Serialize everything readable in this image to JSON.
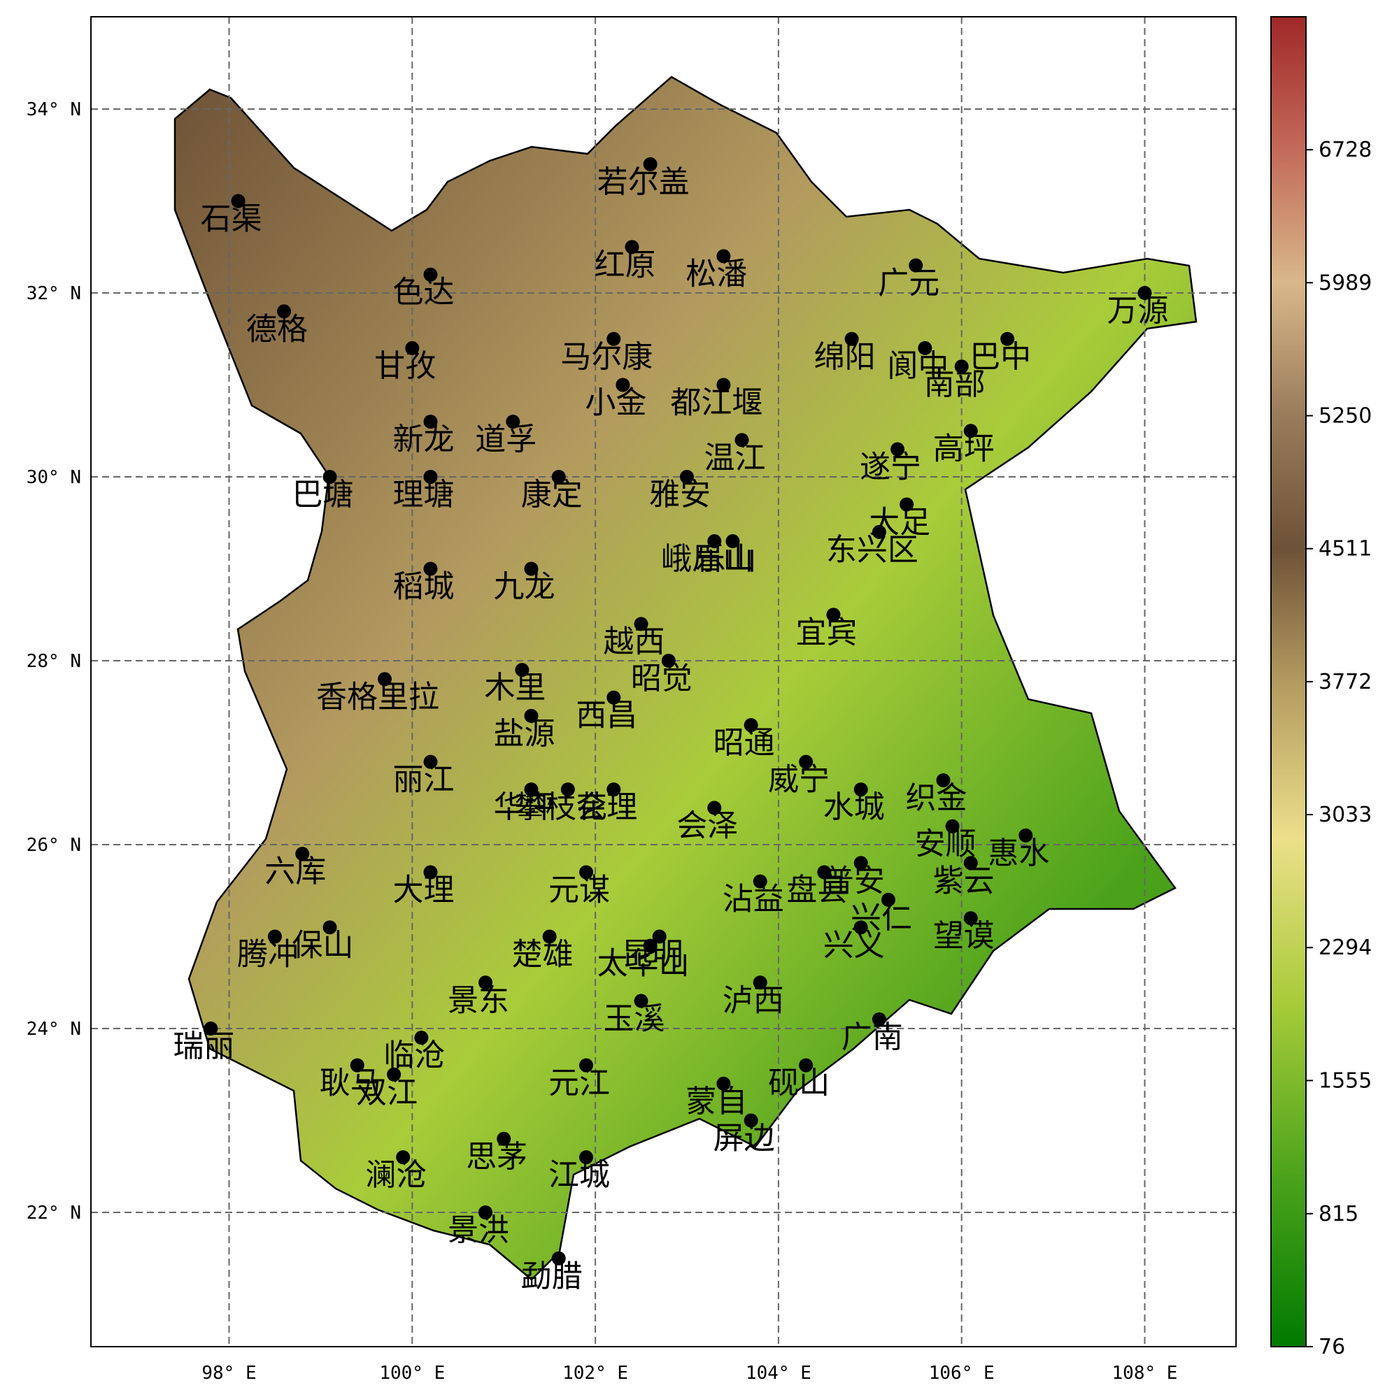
{
  "map": {
    "lon_ticks": [
      "98° E",
      "100° E",
      "102° E",
      "104° E",
      "106° E",
      "108° E"
    ],
    "lat_ticks": [
      "34° N",
      "32° N",
      "30° N",
      "28° N",
      "26° N",
      "24° N",
      "22° N"
    ],
    "lon_values": [
      98,
      100,
      102,
      104,
      106,
      108
    ],
    "lat_values": [
      34,
      32,
      30,
      28,
      26,
      24,
      22
    ],
    "lon_range": [
      96.5,
      109.0
    ],
    "lat_range": [
      20.5,
      35.0
    ],
    "gridlines": true,
    "stations": [
      {
        "name": "石渠",
        "lon": 98.1,
        "lat": 33.0
      },
      {
        "name": "色达",
        "lon": 100.2,
        "lat": 32.2
      },
      {
        "name": "若尔盖",
        "lon": 102.6,
        "lat": 33.4
      },
      {
        "name": "红原",
        "lon": 102.4,
        "lat": 32.5
      },
      {
        "name": "松潘",
        "lon": 103.4,
        "lat": 32.4
      },
      {
        "name": "德格",
        "lon": 98.6,
        "lat": 31.8
      },
      {
        "name": "甘孜",
        "lon": 100.0,
        "lat": 31.4
      },
      {
        "name": "马尔康",
        "lon": 102.2,
        "lat": 31.5
      },
      {
        "name": "广元",
        "lon": 105.5,
        "lat": 32.3
      },
      {
        "name": "阆中",
        "lon": 105.6,
        "lat": 31.4
      },
      {
        "name": "巴中",
        "lon": 106.5,
        "lat": 31.5
      },
      {
        "name": "万源",
        "lon": 108.0,
        "lat": 32.0
      },
      {
        "name": "都江堰",
        "lon": 103.4,
        "lat": 31.0
      },
      {
        "name": "绵阳",
        "lon": 104.8,
        "lat": 31.5
      },
      {
        "name": "南部",
        "lon": 106.0,
        "lat": 31.2
      },
      {
        "name": "新龙",
        "lon": 100.2,
        "lat": 30.6
      },
      {
        "name": "道孚",
        "lon": 101.1,
        "lat": 30.6
      },
      {
        "name": "小金",
        "lon": 102.3,
        "lat": 31.0
      },
      {
        "name": "温江",
        "lon": 103.6,
        "lat": 30.4
      },
      {
        "name": "遂宁",
        "lon": 105.3,
        "lat": 30.3
      },
      {
        "name": "高坪",
        "lon": 106.1,
        "lat": 30.5
      },
      {
        "name": "雅安",
        "lon": 103.0,
        "lat": 30.0
      },
      {
        "name": "康定",
        "lon": 101.6,
        "lat": 30.0
      },
      {
        "name": "巴塘",
        "lon": 99.1,
        "lat": 30.0
      },
      {
        "name": "理塘",
        "lon": 100.2,
        "lat": 30.0
      },
      {
        "name": "大足",
        "lon": 105.4,
        "lat": 29.7
      },
      {
        "name": "峨眉山",
        "lon": 103.3,
        "lat": 29.3
      },
      {
        "name": "乐山",
        "lon": 103.5,
        "lat": 29.3
      },
      {
        "name": "东兴区",
        "lon": 105.1,
        "lat": 29.4
      },
      {
        "name": "稻城",
        "lon": 100.2,
        "lat": 29.0
      },
      {
        "name": "九龙",
        "lon": 101.3,
        "lat": 29.0
      },
      {
        "name": "越西",
        "lon": 102.5,
        "lat": 28.4
      },
      {
        "name": "宜宾",
        "lon": 104.6,
        "lat": 28.5
      },
      {
        "name": "木里",
        "lon": 101.2,
        "lat": 27.9
      },
      {
        "name": "昭觉",
        "lon": 102.8,
        "lat": 28.0
      },
      {
        "name": "香格里拉",
        "lon": 99.7,
        "lat": 27.8
      },
      {
        "name": "西昌",
        "lon": 102.2,
        "lat": 27.6
      },
      {
        "name": "盐源",
        "lon": 101.3,
        "lat": 27.4
      },
      {
        "name": "昭通",
        "lon": 103.7,
        "lat": 27.3
      },
      {
        "name": "攀枝花",
        "lon": 101.7,
        "lat": 26.6
      },
      {
        "name": "威宁",
        "lon": 104.3,
        "lat": 26.9
      },
      {
        "name": "织金",
        "lon": 105.8,
        "lat": 26.7
      },
      {
        "name": "会理",
        "lon": 102.2,
        "lat": 26.6
      },
      {
        "name": "会泽",
        "lon": 103.3,
        "lat": 26.4
      },
      {
        "name": "水城",
        "lon": 104.9,
        "lat": 26.6
      },
      {
        "name": "惠水",
        "lon": 106.7,
        "lat": 26.1
      },
      {
        "name": "丽江",
        "lon": 100.2,
        "lat": 26.9
      },
      {
        "name": "华坪",
        "lon": 101.3,
        "lat": 26.6
      },
      {
        "name": "六库",
        "lon": 98.8,
        "lat": 25.9
      },
      {
        "name": "元谋",
        "lon": 101.9,
        "lat": 25.7
      },
      {
        "name": "沾益",
        "lon": 103.8,
        "lat": 25.6
      },
      {
        "name": "普安",
        "lon": 104.9,
        "lat": 25.8
      },
      {
        "name": "安顺",
        "lon": 105.9,
        "lat": 26.2
      },
      {
        "name": "紫云",
        "lon": 106.1,
        "lat": 25.8
      },
      {
        "name": "保山",
        "lon": 99.1,
        "lat": 25.1
      },
      {
        "name": "大理",
        "lon": 100.2,
        "lat": 25.7
      },
      {
        "name": "昆明",
        "lon": 102.7,
        "lat": 25.0
      },
      {
        "name": "盘县",
        "lon": 104.5,
        "lat": 25.7
      },
      {
        "name": "兴仁",
        "lon": 105.2,
        "lat": 25.4
      },
      {
        "name": "望谟",
        "lon": 106.1,
        "lat": 25.2
      },
      {
        "name": "腾冲",
        "lon": 98.5,
        "lat": 25.0
      },
      {
        "name": "楚雄",
        "lon": 101.5,
        "lat": 25.0
      },
      {
        "name": "太华山",
        "lon": 102.6,
        "lat": 24.9
      },
      {
        "name": "兴义",
        "lon": 104.9,
        "lat": 25.1
      },
      {
        "name": "景东",
        "lon": 100.8,
        "lat": 24.5
      },
      {
        "name": "玉溪",
        "lon": 102.5,
        "lat": 24.3
      },
      {
        "name": "泸西",
        "lon": 103.8,
        "lat": 24.5
      },
      {
        "name": "广南",
        "lon": 105.1,
        "lat": 24.1
      },
      {
        "name": "瑞丽",
        "lon": 97.8,
        "lat": 24.0
      },
      {
        "name": "耿马",
        "lon": 99.4,
        "lat": 23.6
      },
      {
        "name": "临沧",
        "lon": 100.1,
        "lat": 23.9
      },
      {
        "name": "蒙自",
        "lon": 103.4,
        "lat": 23.4
      },
      {
        "name": "砚山",
        "lon": 104.3,
        "lat": 23.6
      },
      {
        "name": "双江",
        "lon": 99.8,
        "lat": 23.5
      },
      {
        "name": "元江",
        "lon": 101.9,
        "lat": 23.6
      },
      {
        "name": "屏边",
        "lon": 103.7,
        "lat": 23.0
      },
      {
        "name": "思茅",
        "lon": 101.0,
        "lat": 22.8
      },
      {
        "name": "江城",
        "lon": 101.9,
        "lat": 22.6
      },
      {
        "name": "澜沧",
        "lon": 99.9,
        "lat": 22.6
      },
      {
        "name": "景洪",
        "lon": 100.8,
        "lat": 22.0
      },
      {
        "name": "勐腊",
        "lon": 101.6,
        "lat": 21.5
      }
    ]
  },
  "colorbar": {
    "ticks": [
      "76",
      "815",
      "1555",
      "2294",
      "3033",
      "3772",
      "4511",
      "5250",
      "5989",
      "6728"
    ],
    "tick_values": [
      76,
      815,
      1555,
      2294,
      3033,
      3772,
      4511,
      5250,
      5989,
      6728
    ],
    "range": [
      76,
      7467
    ],
    "stops": [
      {
        "v": 76,
        "c": "#007a00"
      },
      {
        "v": 1000,
        "c": "#4aa21a"
      },
      {
        "v": 2000,
        "c": "#a9cc3a"
      },
      {
        "v": 2900,
        "c": "#ecdf8a"
      },
      {
        "v": 3772,
        "c": "#b39a5f"
      },
      {
        "v": 4511,
        "c": "#6e5237"
      },
      {
        "v": 5250,
        "c": "#9a7b5b"
      },
      {
        "v": 5989,
        "c": "#d8b889"
      },
      {
        "v": 6728,
        "c": "#c36a5a"
      },
      {
        "v": 7467,
        "c": "#a02828"
      }
    ]
  }
}
